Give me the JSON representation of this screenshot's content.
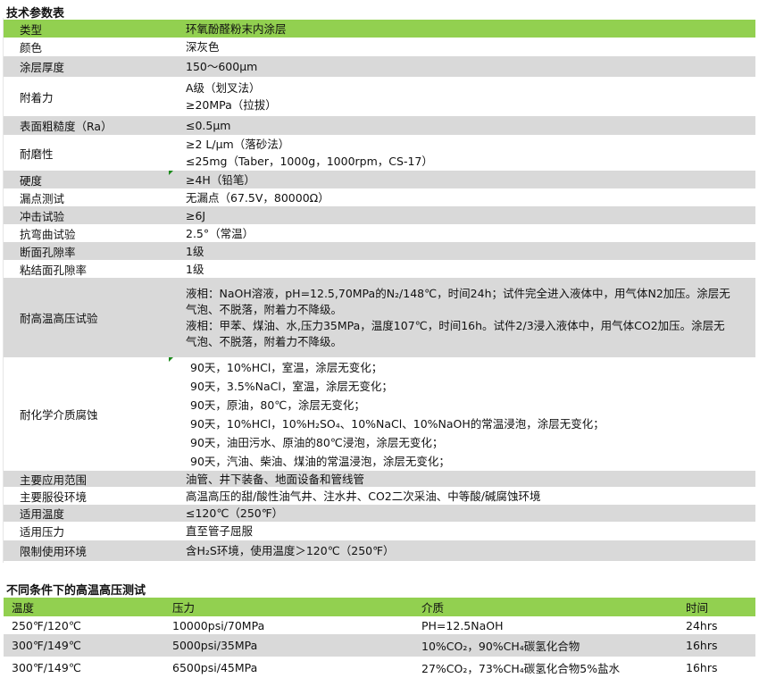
{
  "spec_table": {
    "title": "技术参数表",
    "rows": [
      {
        "label": "类型",
        "values": [
          "环氧酚醛粉末内涂层"
        ]
      },
      {
        "label": "颜色",
        "values": [
          "深灰色"
        ]
      },
      {
        "label": "涂层厚度",
        "values": [
          "150～600μm"
        ]
      },
      {
        "label": "附着力",
        "values": [
          "A级（划叉法）",
          "≥20MPa（拉拔）"
        ]
      },
      {
        "label": "表面粗糙度（Ra）",
        "values": [
          "≤0.5μm"
        ]
      },
      {
        "label": "耐磨性",
        "values": [
          "≥2 L/μm（落砂法）",
          "≤25mg（Taber，1000g，1000rpm，CS-17）"
        ]
      },
      {
        "label": "硬度",
        "values": [
          "≥4H（铅笔）"
        ]
      },
      {
        "label": "漏点测试",
        "values": [
          "无漏点（67.5V，80000Ω）"
        ]
      },
      {
        "label": "冲击试验",
        "values": [
          "≥6J"
        ]
      },
      {
        "label": "抗弯曲试验",
        "values": [
          "2.5°（常温）"
        ]
      },
      {
        "label": "断面孔隙率",
        "values": [
          "1级"
        ]
      },
      {
        "label": "粘结面孔隙率",
        "values": [
          "1级"
        ]
      },
      {
        "label": "耐高温高压试验",
        "values": [
          "液相：NaOH溶液，pH=12.5,70MPa的N₂/148℃，时间24h；试件完全进入液体中，用气体N2加压。涂层无",
          "气泡、不脱落，附着力不降级。",
          "液相：甲苯、煤油、水,压力35MPa，温度107℃，时间16h。试件2/3浸入液体中，用气体CO2加压。涂层无",
          "气泡、不脱落，附着力不降级。"
        ]
      },
      {
        "label": "耐化学介质腐蚀",
        "values": [
          "90天，10%HCl，室温，涂层无变化；",
          "90天，3.5%NaCl，室温，涂层无变化；",
          "90天，原油，80℃，涂层无变化；",
          "90天，10%HCl，10%H₂SO₄、10%NaCl、10%NaOH的常温浸泡，涂层无变化；",
          "90天，油田污水、原油的80℃浸泡，涂层无变化；",
          "90天，汽油、柴油、煤油的常温浸泡，涂层无变化；"
        ]
      },
      {
        "label": "主要应用范围",
        "values": [
          "油管、井下装备、地面设备和管线管"
        ]
      },
      {
        "label": "主要服役环境",
        "values": [
          "高温高压的甜/酸性油气井、注水井、CO2二次采油、中等酸/碱腐蚀环境"
        ]
      },
      {
        "label": "适用温度",
        "values": [
          "≤120℃（250℉）"
        ]
      },
      {
        "label": "适用压力",
        "values": [
          "直至管子屈服"
        ]
      },
      {
        "label": "限制使用环境",
        "values": [
          "含H₂S环境，使用温度＞120℃（250℉）"
        ]
      }
    ]
  },
  "hpht_table": {
    "title": "不同条件下的高温高压测试",
    "headers": [
      "温度",
      "压力",
      "介质",
      "时间"
    ],
    "rows": [
      [
        "250℉/120℃",
        "10000psi/70MPa",
        "PH=12.5NaOH",
        "24hrs"
      ],
      [
        "300℉/149℃",
        "5000psi/35MPa",
        "10%CO₂，90%CH₄碳氢化合物",
        "16hrs"
      ],
      [
        "300℉/149℃",
        "6500psi/45MPa",
        "27%CO₂，73%CH₄碳氢化合物5%盐水",
        "16hrs"
      ]
    ]
  },
  "colors": {
    "header_green": "#92d050",
    "stripe_gray": "#d9d9d9"
  }
}
